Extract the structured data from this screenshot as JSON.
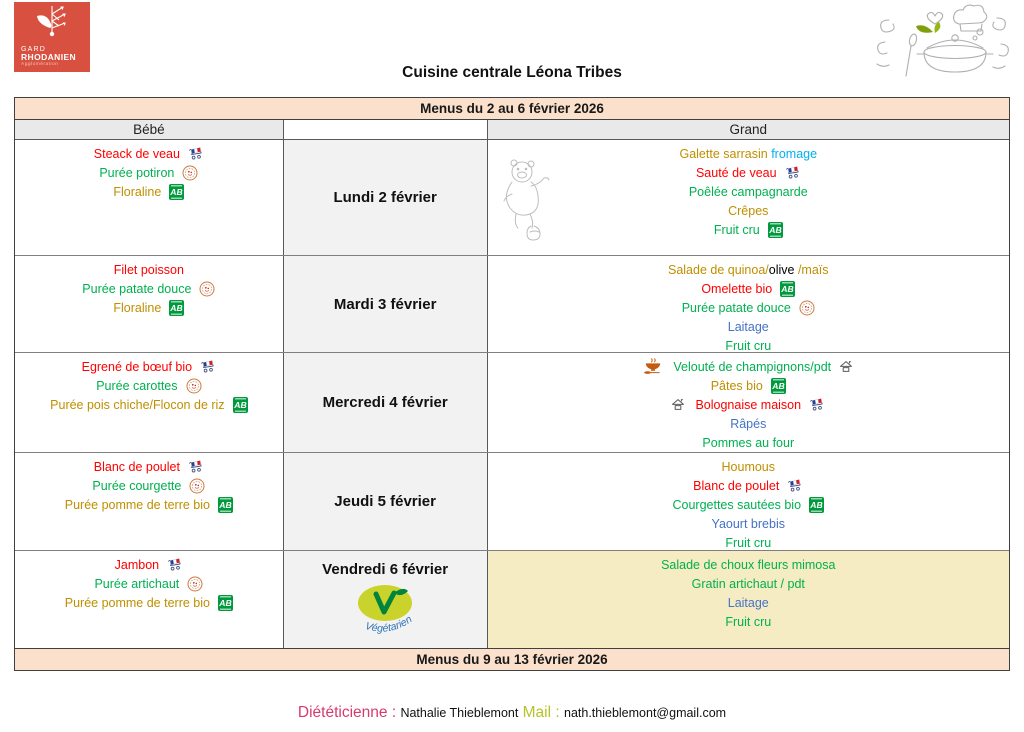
{
  "title": "Cuisine centrale Léona Tribes",
  "logo": {
    "line1": "GARD",
    "line2": "RHODANIEN",
    "line3": "Agglomération"
  },
  "colors": {
    "red": "#FF0000",
    "green": "#00B050",
    "ochre": "#BF8F00",
    "blue": "#4472C4",
    "cyan": "#00B0F0",
    "black": "#000000",
    "peach_band": "#FBE0CC",
    "cream_cell": "#F6ECC3",
    "logo_red": "#D8503F",
    "dietician_pink": "#D63A6E",
    "mail_lime": "#B5C327"
  },
  "table": {
    "week1_header": "Menus du 2 au 6 février 2026",
    "week2_header": "Menus du 9 au 13 février 2026",
    "col_bebe": "Bébé",
    "col_grand": "Grand",
    "rows": [
      {
        "day": "Lundi 2 février",
        "bebe": [
          {
            "segments": [
              {
                "text": "Steack de veau",
                "color": "red"
              }
            ],
            "icons_after": [
              "flag-cart"
            ]
          },
          {
            "segments": [
              {
                "text": "Purée potiron",
                "color": "green"
              }
            ],
            "icons_after": [
              "stamp"
            ]
          },
          {
            "segments": [
              {
                "text": "Floraline",
                "color": "ochre"
              }
            ],
            "icons_after": [
              "ab-bio"
            ]
          }
        ],
        "grand": [
          {
            "segments": [
              {
                "text": "Galette sarrasin ",
                "color": "ochre"
              },
              {
                "text": "fromage",
                "color": "cyan"
              }
            ]
          },
          {
            "segments": [
              {
                "text": "Sauté de veau",
                "color": "red"
              }
            ],
            "icons_after": [
              "flag-cart"
            ]
          },
          {
            "segments": [
              {
                "text": "Poêlée campagnarde",
                "color": "green"
              }
            ]
          },
          {
            "segments": [
              {
                "text": "Crêpes",
                "color": "ochre"
              }
            ]
          },
          {
            "segments": [
              {
                "text": "Fruit cru",
                "color": "green"
              }
            ],
            "icons_after": [
              "ab-bio"
            ]
          }
        ],
        "grand_decoration": "winnie-the-pooh-sketch"
      },
      {
        "day": "Mardi 3 février",
        "bebe": [
          {
            "segments": [
              {
                "text": "Filet poisson",
                "color": "red"
              }
            ]
          },
          {
            "segments": [
              {
                "text": "Purée patate douce",
                "color": "green"
              }
            ],
            "icons_after": [
              "stamp"
            ]
          },
          {
            "segments": [
              {
                "text": "Floraline",
                "color": "ochre"
              }
            ],
            "icons_after": [
              "ab-bio"
            ]
          }
        ],
        "grand": [
          {
            "segments": [
              {
                "text": "Salade de quinoa/",
                "color": "ochre"
              },
              {
                "text": "olive",
                "color": "black"
              },
              {
                "text": " /maïs",
                "color": "ochre"
              }
            ]
          },
          {
            "segments": [
              {
                "text": "Omelette bio",
                "color": "red"
              }
            ],
            "icons_after": [
              "ab-bio"
            ]
          },
          {
            "segments": [
              {
                "text": "Purée patate douce",
                "color": "green"
              }
            ],
            "icons_after": [
              "stamp"
            ]
          },
          {
            "segments": [
              {
                "text": "Laitage",
                "color": "blue"
              }
            ]
          },
          {
            "segments": [
              {
                "text": "Fruit cru",
                "color": "green"
              }
            ]
          }
        ]
      },
      {
        "day": "Mercredi 4 février",
        "bebe": [
          {
            "segments": [
              {
                "text": "Egrené de bœuf bio",
                "color": "red"
              }
            ],
            "icons_after": [
              "flag-cart"
            ]
          },
          {
            "segments": [
              {
                "text": "Purée carottes",
                "color": "green"
              }
            ],
            "icons_after": [
              "stamp"
            ]
          },
          {
            "segments": [
              {
                "text": "Purée pois chiche/Flocon de riz",
                "color": "ochre"
              }
            ],
            "icons_after": [
              "ab-bio"
            ]
          }
        ],
        "grand": [
          {
            "segments": [
              {
                "text": "Velouté de champignons/pdt",
                "color": "green"
              }
            ],
            "icons_before": [
              "soup-bowl"
            ],
            "icons_after": [
              "house"
            ]
          },
          {
            "segments": [
              {
                "text": "Pâtes bio",
                "color": "ochre"
              }
            ],
            "icons_after": [
              "ab-bio"
            ]
          },
          {
            "segments": [
              {
                "text": "Bolognaise maison",
                "color": "red"
              }
            ],
            "icons_before": [
              "house"
            ],
            "icons_after": [
              "flag-cart"
            ]
          },
          {
            "segments": [
              {
                "text": "Râpés",
                "color": "blue"
              }
            ]
          },
          {
            "segments": [
              {
                "text": "Pommes au four",
                "color": "green"
              }
            ]
          }
        ]
      },
      {
        "day": "Jeudi 5 février",
        "bebe": [
          {
            "segments": [
              {
                "text": "Blanc de poulet",
                "color": "red"
              }
            ],
            "icons_after": [
              "flag-cart"
            ]
          },
          {
            "segments": [
              {
                "text": "Purée courgette",
                "color": "green"
              }
            ],
            "icons_after": [
              "stamp"
            ]
          },
          {
            "segments": [
              {
                "text": "Purée pomme de terre bio",
                "color": "ochre"
              }
            ],
            "icons_after": [
              "ab-bio"
            ]
          }
        ],
        "grand": [
          {
            "segments": [
              {
                "text": "Houmous",
                "color": "ochre"
              }
            ]
          },
          {
            "segments": [
              {
                "text": "Blanc de poulet",
                "color": "red"
              }
            ],
            "icons_after": [
              "flag-cart"
            ]
          },
          {
            "segments": [
              {
                "text": "Courgettes sautées bio",
                "color": "green"
              }
            ],
            "icons_after": [
              "ab-bio"
            ]
          },
          {
            "segments": [
              {
                "text": "Yaourt brebis",
                "color": "blue"
              }
            ]
          },
          {
            "segments": [
              {
                "text": "Fruit cru",
                "color": "green"
              }
            ]
          }
        ]
      },
      {
        "day": "Vendredi 6 février",
        "day_badge": "Végétarien",
        "bebe": [
          {
            "segments": [
              {
                "text": "Jambon",
                "color": "red"
              }
            ],
            "icons_after": [
              "flag-cart"
            ]
          },
          {
            "segments": [
              {
                "text": "Purée artichaut",
                "color": "green"
              }
            ],
            "icons_after": [
              "stamp"
            ]
          },
          {
            "segments": [
              {
                "text": "Purée pomme de terre bio",
                "color": "ochre"
              }
            ],
            "icons_after": [
              "ab-bio"
            ]
          }
        ],
        "grand": [
          {
            "segments": [
              {
                "text": "Salade de choux fleurs mimosa",
                "color": "green"
              }
            ]
          },
          {
            "segments": [
              {
                "text": "Gratin artichaut / pdt",
                "color": "green"
              }
            ]
          },
          {
            "segments": [
              {
                "text": "Laitage",
                "color": "blue"
              }
            ]
          },
          {
            "segments": [
              {
                "text": "Fruit cru",
                "color": "green"
              }
            ]
          }
        ],
        "grand_bg": "cream"
      }
    ]
  },
  "footer": {
    "dietician_label": "Diététicienne",
    "sep1": " : ",
    "dietician_name": "Nathalie Thieblemont",
    "mail_label": " Mail",
    "sep2": " : ",
    "email": "nath.thieblemont@gmail.com"
  }
}
